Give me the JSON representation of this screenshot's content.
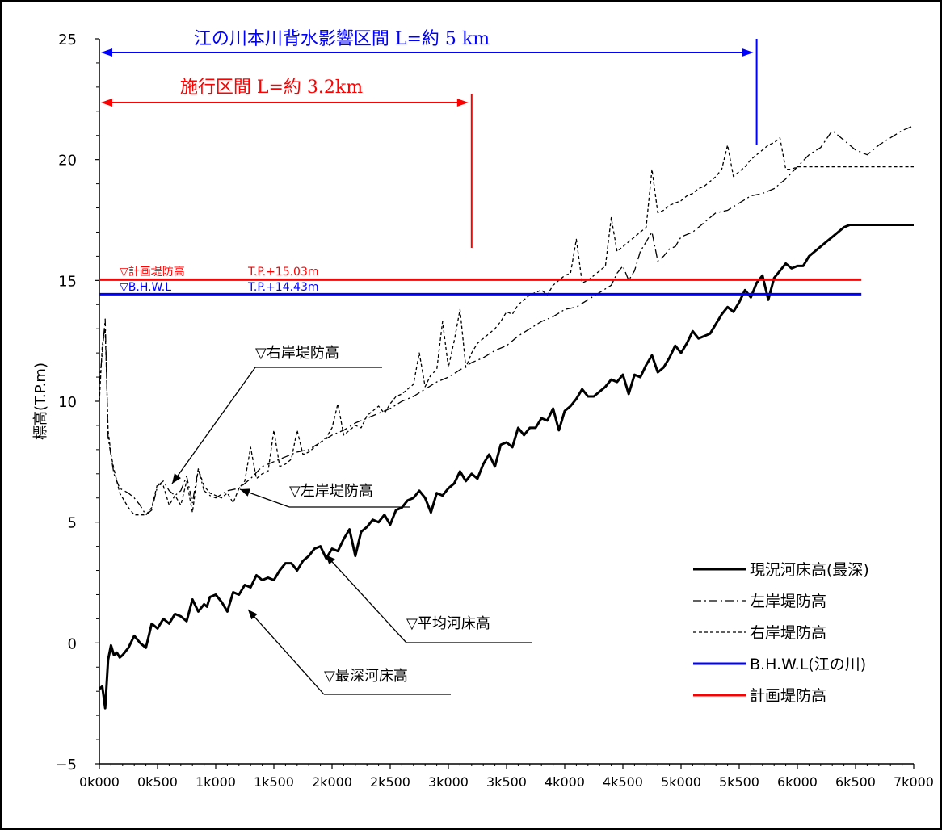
{
  "chart_data": {
    "type": "line",
    "title": "",
    "ylabel": "標高(T.P.m)",
    "xlabel": "",
    "xlim": [
      0,
      7000
    ],
    "ylim": [
      -5,
      25
    ],
    "x_ticks": [
      0,
      500,
      1000,
      1500,
      2000,
      2500,
      3000,
      3500,
      4000,
      4500,
      5000,
      5500,
      6000,
      6500,
      7000
    ],
    "x_tick_labels": [
      "0k000",
      "0k500",
      "1k000",
      "1k500",
      "2k000",
      "2k500",
      "3k000",
      "3k500",
      "4k000",
      "4k500",
      "5k000",
      "5k500",
      "6k000",
      "6k500",
      "7k000"
    ],
    "y_ticks": [
      -5,
      0,
      5,
      10,
      15,
      20,
      25
    ],
    "y_tick_labels": [
      "−5",
      "0",
      "5",
      "10",
      "15",
      "20",
      "25"
    ],
    "grid": false,
    "legend_position": "bottom-right",
    "legend": [
      {
        "label": "現況河床高(最深)",
        "color": "#000000",
        "style": "solid-thick"
      },
      {
        "label": "左岸堤防高",
        "color": "#000000",
        "style": "dashdot"
      },
      {
        "label": "右岸堤防高",
        "color": "#000000",
        "style": "dashed"
      },
      {
        "label": "B.H.W.L(江の川)",
        "color": "#0000ff",
        "style": "solid-thick"
      },
      {
        "label": "計画堤防高",
        "color": "#ff0000",
        "style": "solid-thick"
      }
    ],
    "series": [
      {
        "name": "現況河床高(最深)",
        "color": "#000000",
        "x": [
          0,
          25,
          50,
          75,
          100,
          125,
          150,
          175,
          200,
          250,
          300,
          350,
          400,
          450,
          500,
          550,
          600,
          650,
          700,
          750,
          800,
          850,
          900,
          925,
          950,
          1000,
          1050,
          1100,
          1150,
          1200,
          1250,
          1300,
          1350,
          1400,
          1450,
          1500,
          1550,
          1600,
          1650,
          1700,
          1750,
          1800,
          1850,
          1900,
          1950,
          2000,
          2050,
          2100,
          2150,
          2200,
          2250,
          2300,
          2350,
          2400,
          2450,
          2500,
          2550,
          2600,
          2650,
          2700,
          2750,
          2800,
          2850,
          2900,
          2950,
          3000,
          3050,
          3100,
          3150,
          3200,
          3250,
          3300,
          3350,
          3400,
          3450,
          3500,
          3550,
          3600,
          3650,
          3700,
          3750,
          3800,
          3850,
          3900,
          3950,
          4000,
          4050,
          4100,
          4150,
          4200,
          4250,
          4300,
          4350,
          4400,
          4450,
          4500,
          4550,
          4600,
          4650,
          4700,
          4750,
          4800,
          4850,
          4900,
          4950,
          5000,
          5050,
          5100,
          5150,
          5200,
          5250,
          5300,
          5350,
          5400,
          5450,
          5500,
          5550,
          5600,
          5650,
          5700,
          5750,
          5800,
          5850,
          5900,
          5950,
          6000,
          6050,
          6100,
          6150,
          6200,
          6250,
          6300,
          6350,
          6400,
          6450,
          6500,
          6550,
          6600,
          6650,
          6700,
          6750,
          6800,
          6850,
          6900,
          6950,
          7000
        ],
        "y": [
          -1.9,
          -1.8,
          -2.7,
          -0.7,
          -0.1,
          -0.5,
          -0.4,
          -0.6,
          -0.5,
          -0.2,
          0.3,
          0.0,
          -0.2,
          0.8,
          0.6,
          1.0,
          0.8,
          1.2,
          1.1,
          0.9,
          1.8,
          1.3,
          1.6,
          1.5,
          1.9,
          2.0,
          1.7,
          1.3,
          2.1,
          2.0,
          2.4,
          2.3,
          2.8,
          2.6,
          2.7,
          2.6,
          3.0,
          3.3,
          3.3,
          3.0,
          3.4,
          3.6,
          3.9,
          4.0,
          3.5,
          3.9,
          3.8,
          4.3,
          4.7,
          3.6,
          4.6,
          4.8,
          5.1,
          5.0,
          5.3,
          4.9,
          5.5,
          5.6,
          5.9,
          6.0,
          6.3,
          6.0,
          5.4,
          6.2,
          6.1,
          6.4,
          6.6,
          7.1,
          6.7,
          7.0,
          6.8,
          7.4,
          7.8,
          7.3,
          8.2,
          8.3,
          8.1,
          8.9,
          8.6,
          8.9,
          8.9,
          9.3,
          9.2,
          9.7,
          8.8,
          9.6,
          9.8,
          10.1,
          10.5,
          10.2,
          10.2,
          10.4,
          10.6,
          10.9,
          10.8,
          11.1,
          10.3,
          11.1,
          11.0,
          11.5,
          11.9,
          11.2,
          11.4,
          11.8,
          12.3,
          12.0,
          12.4,
          12.9,
          12.6,
          12.7,
          12.8,
          13.2,
          13.6,
          13.9,
          13.7,
          14.1,
          14.6,
          14.3,
          14.9,
          15.2,
          14.2,
          15.1,
          15.4,
          15.7,
          15.5,
          15.6,
          15.6,
          16.0,
          16.2,
          16.4,
          16.6,
          16.8,
          17.0,
          17.2,
          17.3,
          17.3,
          17.3,
          17.3,
          17.3,
          17.3,
          17.3,
          17.3,
          17.3,
          17.3,
          17.3,
          17.3
        ]
      },
      {
        "name": "左岸堤防高",
        "color": "#000000",
        "x": [
          0,
          25,
          50,
          75,
          125,
          175,
          250,
          300,
          350,
          400,
          450,
          500,
          550,
          600,
          650,
          700,
          750,
          800,
          850,
          900,
          950,
          1000,
          1100,
          1200,
          1300,
          1400,
          1500,
          1600,
          1700,
          1800,
          1900,
          2000,
          2100,
          2200,
          2300,
          2400,
          2500,
          2600,
          2700,
          2800,
          2900,
          3000,
          3100,
          3200,
          3300,
          3400,
          3500,
          3600,
          3700,
          3800,
          3900,
          4000,
          4100,
          4200,
          4300,
          4400,
          4450,
          4500,
          4550,
          4600,
          4650,
          4700,
          4750,
          4800,
          4850,
          4900,
          4950,
          5000,
          5100,
          5200,
          5300,
          5400,
          5500,
          5600,
          5700,
          5800,
          5900,
          6000,
          6100,
          6200,
          6300,
          6400,
          6500,
          6600,
          6700,
          6800,
          6900,
          7000
        ],
        "y": [
          10.7,
          12.0,
          13.4,
          8.5,
          7.0,
          6.4,
          6.2,
          6.0,
          5.7,
          5.3,
          5.5,
          6.5,
          6.7,
          6.3,
          6.1,
          6.3,
          6.9,
          5.8,
          7.2,
          6.3,
          6.1,
          6.0,
          6.3,
          6.4,
          6.8,
          7.3,
          7.5,
          7.7,
          7.9,
          8.0,
          8.3,
          8.6,
          8.8,
          9.1,
          9.3,
          9.5,
          9.7,
          10.0,
          10.2,
          10.5,
          10.8,
          11.0,
          11.3,
          11.6,
          11.8,
          12.1,
          12.3,
          12.7,
          13.0,
          13.3,
          13.5,
          13.8,
          13.9,
          14.2,
          14.5,
          14.8,
          15.3,
          15.6,
          15.0,
          15.4,
          16.2,
          16.6,
          17.0,
          15.8,
          16.0,
          16.3,
          16.4,
          16.8,
          17.0,
          17.4,
          17.8,
          17.9,
          18.2,
          18.5,
          18.6,
          18.8,
          19.2,
          19.7,
          20.2,
          20.5,
          21.2,
          20.8,
          20.4,
          20.2,
          20.6,
          20.9,
          21.2,
          21.4
        ]
      },
      {
        "name": "右岸堤防高",
        "color": "#000000",
        "x": [
          0,
          25,
          50,
          75,
          100,
          125,
          175,
          250,
          300,
          350,
          400,
          450,
          500,
          550,
          600,
          650,
          700,
          750,
          800,
          850,
          900,
          950,
          1000,
          1050,
          1100,
          1150,
          1200,
          1250,
          1300,
          1350,
          1400,
          1450,
          1500,
          1550,
          1600,
          1650,
          1700,
          1750,
          1800,
          1850,
          1900,
          1950,
          2000,
          2050,
          2100,
          2150,
          2200,
          2250,
          2300,
          2350,
          2400,
          2450,
          2500,
          2550,
          2600,
          2650,
          2700,
          2750,
          2800,
          2850,
          2900,
          2950,
          3000,
          3050,
          3100,
          3150,
          3200,
          3250,
          3300,
          3350,
          3400,
          3450,
          3500,
          3550,
          3600,
          3650,
          3700,
          3750,
          3800,
          3850,
          3900,
          3950,
          4000,
          4050,
          4100,
          4150,
          4200,
          4250,
          4300,
          4350,
          4400,
          4450,
          4500,
          4550,
          4600,
          4650,
          4700,
          4750,
          4800,
          4850,
          4900,
          4950,
          5000,
          5050,
          5100,
          5150,
          5200,
          5250,
          5300,
          5350,
          5400,
          5450,
          5500,
          5550,
          5600,
          5650,
          5700,
          5750,
          5800,
          5850,
          5900,
          5950,
          6000,
          6050,
          6100,
          6150,
          6200,
          6250,
          6300,
          6350,
          6400,
          6450,
          6500,
          6550,
          6600,
          6650,
          6700,
          6750,
          6800,
          6850,
          6900,
          6950,
          7000
        ],
        "y": [
          10.0,
          12.3,
          13.0,
          8.8,
          7.8,
          7.2,
          6.2,
          5.6,
          5.3,
          5.3,
          5.3,
          5.6,
          6.6,
          6.5,
          5.7,
          6.1,
          5.7,
          6.7,
          5.4,
          7.2,
          6.5,
          6.2,
          6.1,
          6.0,
          6.2,
          5.8,
          6.4,
          6.7,
          8.1,
          6.8,
          7.0,
          7.1,
          8.8,
          7.3,
          7.4,
          7.6,
          8.8,
          7.8,
          7.9,
          8.1,
          8.3,
          8.5,
          8.9,
          9.9,
          8.6,
          8.8,
          9.0,
          8.9,
          9.4,
          9.6,
          9.8,
          9.5,
          9.9,
          10.2,
          10.3,
          10.5,
          10.7,
          12.0,
          10.6,
          11.1,
          11.3,
          13.3,
          11.4,
          12.5,
          13.8,
          11.4,
          12.0,
          12.4,
          12.6,
          12.8,
          13.0,
          13.3,
          13.7,
          13.6,
          14.0,
          14.2,
          14.4,
          14.5,
          14.6,
          14.4,
          14.8,
          15.0,
          15.2,
          15.3,
          16.7,
          14.9,
          15.0,
          15.2,
          15.4,
          15.6,
          17.6,
          16.2,
          16.4,
          16.6,
          16.8,
          17.0,
          17.2,
          19.6,
          17.8,
          17.9,
          18.1,
          18.2,
          18.3,
          18.5,
          18.6,
          18.8,
          18.9,
          19.1,
          19.3,
          19.6,
          20.6,
          19.3,
          19.5,
          19.7,
          20.0,
          20.2,
          20.4,
          20.6,
          20.7,
          20.9,
          19.6,
          19.6,
          19.7,
          19.7,
          19.7,
          19.7,
          19.7,
          19.7,
          19.7,
          19.7,
          19.7,
          19.7,
          19.7,
          19.7,
          19.7,
          19.7,
          19.7,
          19.7,
          19.7,
          19.7,
          19.7,
          19.7,
          19.7
        ]
      },
      {
        "name": "B.H.W.L(江の川)",
        "color": "#0000ff",
        "x": [
          0,
          6550
        ],
        "y": [
          14.43,
          14.43
        ]
      },
      {
        "name": "計画堤防高",
        "color": "#ff0000",
        "x": [
          0,
          6550
        ],
        "y": [
          15.03,
          15.03
        ]
      }
    ],
    "annotations": {
      "span_main": {
        "text": "江の川本川背水影響区間 L=約 5 km",
        "x_from": 0,
        "x_to": 5650,
        "color": "#0000ff"
      },
      "span_work": {
        "text": "施行区間 L=約 3.2km",
        "x_from": 0,
        "x_to": 3200,
        "color": "#ff0000"
      },
      "keikaku_label": "▽計画堤防高",
      "keikaku_value": "T.P.+15.03m",
      "bhwl_label": "▽B.H.W.L",
      "bhwl_value": "T.P.+14.43m",
      "right_bank": "▽右岸堤防高",
      "left_bank": "▽左岸堤防高",
      "avg_bed": "▽平均河床高",
      "deep_bed": "▽最深河床高"
    }
  }
}
